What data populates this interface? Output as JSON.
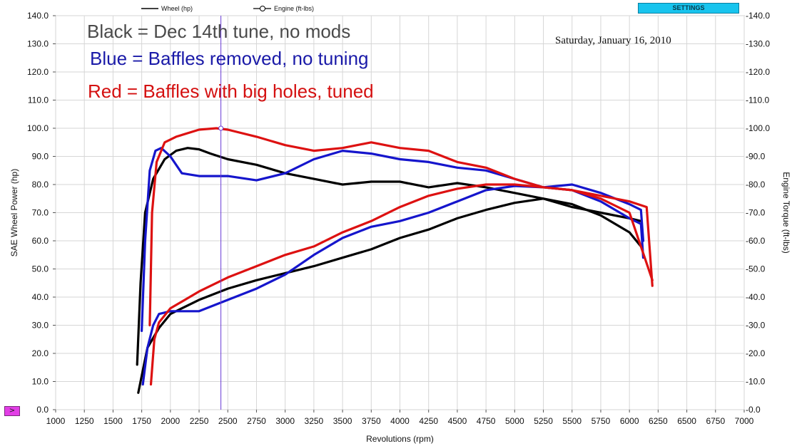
{
  "settings_label": "SETTINGS",
  "nav_button_glyph": ">",
  "legend": {
    "wheel": "Wheel  (hp)",
    "engine": "Engine  (ft-lbs)"
  },
  "notes": [
    {
      "text": "Black = Dec 14th tune, no mods",
      "color": "#4a4a4a"
    },
    {
      "text": "Blue = Baffles removed, no tuning",
      "color": "#1a1aa8"
    },
    {
      "text": "Red = Baffles with big holes, tuned",
      "color": "#d41010"
    }
  ],
  "date_text": "Saturday, January 16, 2010",
  "cursor_rpm": 2440,
  "chart_data": {
    "type": "line",
    "xlabel": "Revolutions (rpm)",
    "ylabel": "SAE Wheel Power (hp)",
    "y2label": "Engine Torque (ft-lbs)",
    "xlim": [
      1000,
      7000
    ],
    "ylim": [
      0,
      140
    ],
    "y2lim": [
      0,
      140
    ],
    "x_ticks": [
      "1000",
      "1250",
      "1500",
      "1750",
      "2000",
      "2250",
      "2500",
      "2750",
      "3000",
      "3250",
      "3500",
      "3750",
      "4000",
      "4250",
      "4500",
      "4750",
      "5000",
      "5250",
      "5500",
      "5750",
      "6000",
      "6250",
      "6500",
      "6750",
      "7000"
    ],
    "y_ticks": [
      "0.0",
      "10.0",
      "20.0",
      "30.0",
      "40.0",
      "50.0",
      "60.0",
      "70.0",
      "80.0",
      "90.0",
      "100.0",
      "110.0",
      "120.0",
      "130.0",
      "140.0"
    ],
    "y2_ticks": [
      "-0.0",
      "-10.0",
      "-20.0",
      "-30.0",
      "-40.0",
      "-50.0",
      "-60.0",
      "-70.0",
      "-80.0",
      "-90.0",
      "-100.0",
      "-110.0",
      "-120.0",
      "-130.0",
      "-140.0"
    ],
    "grid": true,
    "series": [
      {
        "kind": "wheel_hp",
        "color": "#000000",
        "x": [
          1720,
          1760,
          1800,
          1900,
          2000,
          2250,
          2500,
          2750,
          3000,
          3250,
          3500,
          3750,
          4000,
          4250,
          4500,
          4750,
          5000,
          5250,
          5500,
          5750,
          6000,
          6100
        ],
        "y": [
          6,
          14,
          22,
          29,
          34,
          39,
          43,
          46,
          48.5,
          51,
          54,
          57,
          61,
          64,
          68,
          71,
          73.5,
          75,
          73,
          69,
          63,
          58
        ]
      },
      {
        "kind": "torque",
        "color": "#000000",
        "x": [
          1710,
          1740,
          1780,
          1850,
          1950,
          2050,
          2150,
          2250,
          2350,
          2500,
          2750,
          3000,
          3250,
          3500,
          3750,
          4000,
          4250,
          4500,
          4750,
          5000,
          5250,
          5500,
          5750,
          6000,
          6100
        ],
        "y": [
          16,
          45,
          70,
          82,
          89,
          92,
          93,
          92.5,
          91,
          89,
          87,
          84,
          82,
          80,
          81,
          81,
          79,
          80.5,
          79,
          77,
          75,
          72,
          70,
          68,
          67
        ]
      },
      {
        "kind": "wheel_hp",
        "color": "#1515cc",
        "x": [
          1760,
          1800,
          1850,
          1900,
          2000,
          2250,
          2500,
          2750,
          3000,
          3250,
          3500,
          3750,
          4000,
          4250,
          4500,
          4750,
          5000,
          5250,
          5500,
          5750,
          6000,
          6100,
          6120
        ],
        "y": [
          9,
          22,
          30,
          34,
          35,
          35,
          39,
          43,
          48,
          55,
          61,
          65,
          67,
          70,
          74,
          78,
          79.5,
          79,
          78,
          74,
          68,
          66,
          54
        ]
      },
      {
        "kind": "torque",
        "color": "#1515cc",
        "x": [
          1750,
          1780,
          1820,
          1870,
          1920,
          2000,
          2100,
          2250,
          2500,
          2750,
          3000,
          3250,
          3500,
          3750,
          4000,
          4250,
          4500,
          4750,
          5000,
          5250,
          5500,
          5750,
          6000,
          6100,
          6120
        ],
        "y": [
          28,
          60,
          85,
          92,
          93,
          90,
          84,
          83,
          83,
          81.5,
          84,
          89,
          92,
          91,
          89,
          88,
          86,
          85,
          82,
          79,
          80,
          77,
          73,
          71,
          60
        ]
      },
      {
        "kind": "wheel_hp",
        "color": "#dd1111",
        "x": [
          1830,
          1860,
          1900,
          2000,
          2250,
          2500,
          2750,
          3000,
          3250,
          3500,
          3750,
          4000,
          4250,
          4500,
          4750,
          5000,
          5250,
          5500,
          5750,
          6000,
          6200
        ],
        "y": [
          9,
          25,
          31,
          36,
          42,
          47,
          51,
          55,
          58,
          63,
          67,
          72,
          76,
          78.5,
          80,
          80,
          79,
          78,
          75,
          70,
          46
        ]
      },
      {
        "kind": "torque",
        "color": "#dd1111",
        "x": [
          1820,
          1840,
          1880,
          1950,
          2050,
          2250,
          2400,
          2500,
          2750,
          3000,
          3250,
          3500,
          3750,
          4000,
          4250,
          4500,
          4750,
          5000,
          5250,
          5500,
          5750,
          6000,
          6150,
          6200
        ],
        "y": [
          30,
          70,
          88,
          95,
          97,
          99.5,
          100,
          99.5,
          97,
          94,
          92,
          93,
          95,
          93,
          92,
          88,
          86,
          82,
          79,
          78,
          76,
          74,
          72,
          44
        ]
      }
    ]
  }
}
